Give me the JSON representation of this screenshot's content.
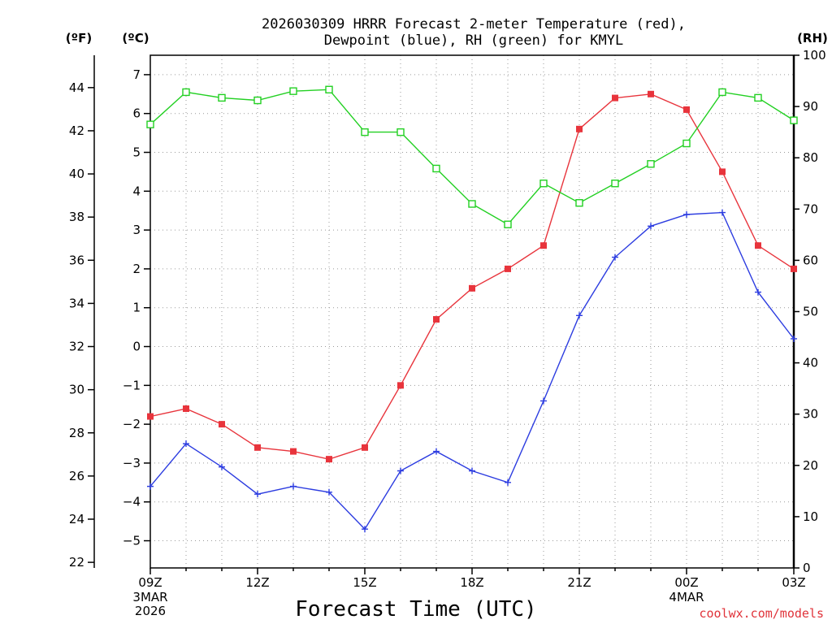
{
  "chart_data": {
    "type": "line",
    "title_line1": "2026030309 HRRR Forecast 2-meter Temperature (red),",
    "title_line2": "Dewpoint (blue), RH (green) for KMYL",
    "xlabel": "Forecast Time (UTC)",
    "credit": "coolwx.com/models",
    "left_outer_unit": "(ºF)",
    "left_inner_unit": "(ºC)",
    "right_unit": "(RH)",
    "x_hours": [
      0,
      1,
      2,
      3,
      4,
      5,
      6,
      7,
      8,
      9,
      10,
      11,
      12,
      13,
      14,
      15,
      16,
      17,
      18
    ],
    "x_tick_hours": [
      0,
      3,
      6,
      9,
      12,
      15,
      18
    ],
    "x_tick_labels": [
      "09Z",
      "12Z",
      "15Z",
      "18Z",
      "21Z",
      "00Z",
      "03Z"
    ],
    "date_label_1": {
      "hour": 0,
      "lines": [
        "3MAR",
        "2026"
      ]
    },
    "date_label_2": {
      "hour": 15,
      "lines": [
        "4MAR"
      ]
    },
    "ylim_c": [
      -5.7,
      7.5
    ],
    "yticks_c": [
      -5,
      -4,
      -3,
      -2,
      -1,
      0,
      1,
      2,
      3,
      4,
      5,
      6,
      7
    ],
    "ylim_f": [
      21.74,
      45.5
    ],
    "yticks_f": [
      22,
      24,
      26,
      28,
      30,
      32,
      34,
      36,
      38,
      40,
      42,
      44
    ],
    "ylim_rh": [
      0,
      100
    ],
    "yticks_rh": [
      0,
      10,
      20,
      30,
      40,
      50,
      60,
      70,
      80,
      90,
      100
    ],
    "grid": true,
    "series": [
      {
        "name": "Temperature",
        "color": "#e8343c",
        "marker": "filled-square",
        "axis": "c",
        "values": [
          -1.8,
          -1.6,
          -2.0,
          -2.6,
          -2.7,
          -2.9,
          -2.6,
          -1.0,
          0.7,
          1.5,
          2.0,
          2.6,
          5.6,
          6.4,
          6.5,
          6.1,
          4.5,
          2.6,
          2.0
        ]
      },
      {
        "name": "Dewpoint",
        "color": "#2c3ce0",
        "marker": "plus",
        "axis": "c",
        "values": [
          -3.6,
          -2.5,
          -3.1,
          -3.8,
          -3.6,
          -3.75,
          -4.7,
          -3.2,
          -2.7,
          -3.2,
          -3.5,
          -1.4,
          0.8,
          2.3,
          3.1,
          3.4,
          3.45,
          1.4,
          0.2
        ]
      },
      {
        "name": "RH",
        "color": "#22d022",
        "marker": "open-square",
        "axis": "rh",
        "values": [
          86.5,
          92.8,
          91.7,
          91.2,
          93.0,
          93.3,
          85.0,
          85.0,
          77.9,
          71.0,
          67.0,
          75.0,
          71.2,
          75.0,
          78.8,
          82.8,
          92.8,
          91.7,
          87.3
        ]
      }
    ]
  }
}
